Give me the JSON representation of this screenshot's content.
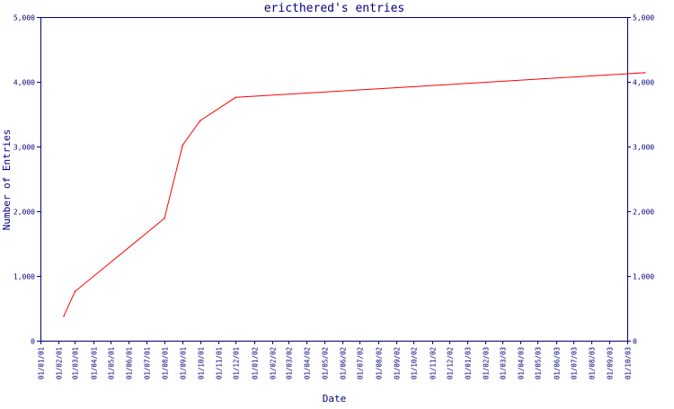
{
  "chart_data": {
    "type": "line",
    "title": "ericthered's entries",
    "xlabel": "Date",
    "ylabel": "Number of Entries",
    "ylim": [
      0,
      5000
    ],
    "grid": false,
    "colors": {
      "axis": "#000080",
      "line": "#ff0000",
      "background": "#ffffff"
    },
    "yticks": [
      {
        "value": 0,
        "label": "0"
      },
      {
        "value": 1000,
        "label": "1,000"
      },
      {
        "value": 2000,
        "label": "2,000"
      },
      {
        "value": 3000,
        "label": "3,000"
      },
      {
        "value": 4000,
        "label": "4,000"
      },
      {
        "value": 5000,
        "label": "5,000"
      }
    ],
    "xticks": [
      "01/01/01",
      "01/02/01",
      "01/03/01",
      "01/04/01",
      "01/05/01",
      "01/06/01",
      "01/07/01",
      "01/08/01",
      "01/09/01",
      "01/10/01",
      "01/11/01",
      "01/12/01",
      "01/01/02",
      "01/02/02",
      "01/03/02",
      "01/04/02",
      "01/05/02",
      "01/06/02",
      "01/07/02",
      "01/08/02",
      "01/09/02",
      "01/10/02",
      "01/11/02",
      "01/12/02",
      "01/01/03",
      "01/02/03",
      "01/03/03",
      "01/04/03",
      "01/05/03",
      "01/06/03",
      "01/07/03",
      "01/08/03",
      "01/09/03",
      "01/10/03"
    ],
    "series": [
      {
        "x": [
          "2001-02-10",
          "2001-03-01",
          "2001-08-01",
          "2001-09-01",
          "2001-10-01",
          "2001-12-01",
          "2003-10-31"
        ],
        "y": [
          380,
          760,
          1890,
          3020,
          3400,
          3760,
          4140
        ]
      }
    ]
  }
}
